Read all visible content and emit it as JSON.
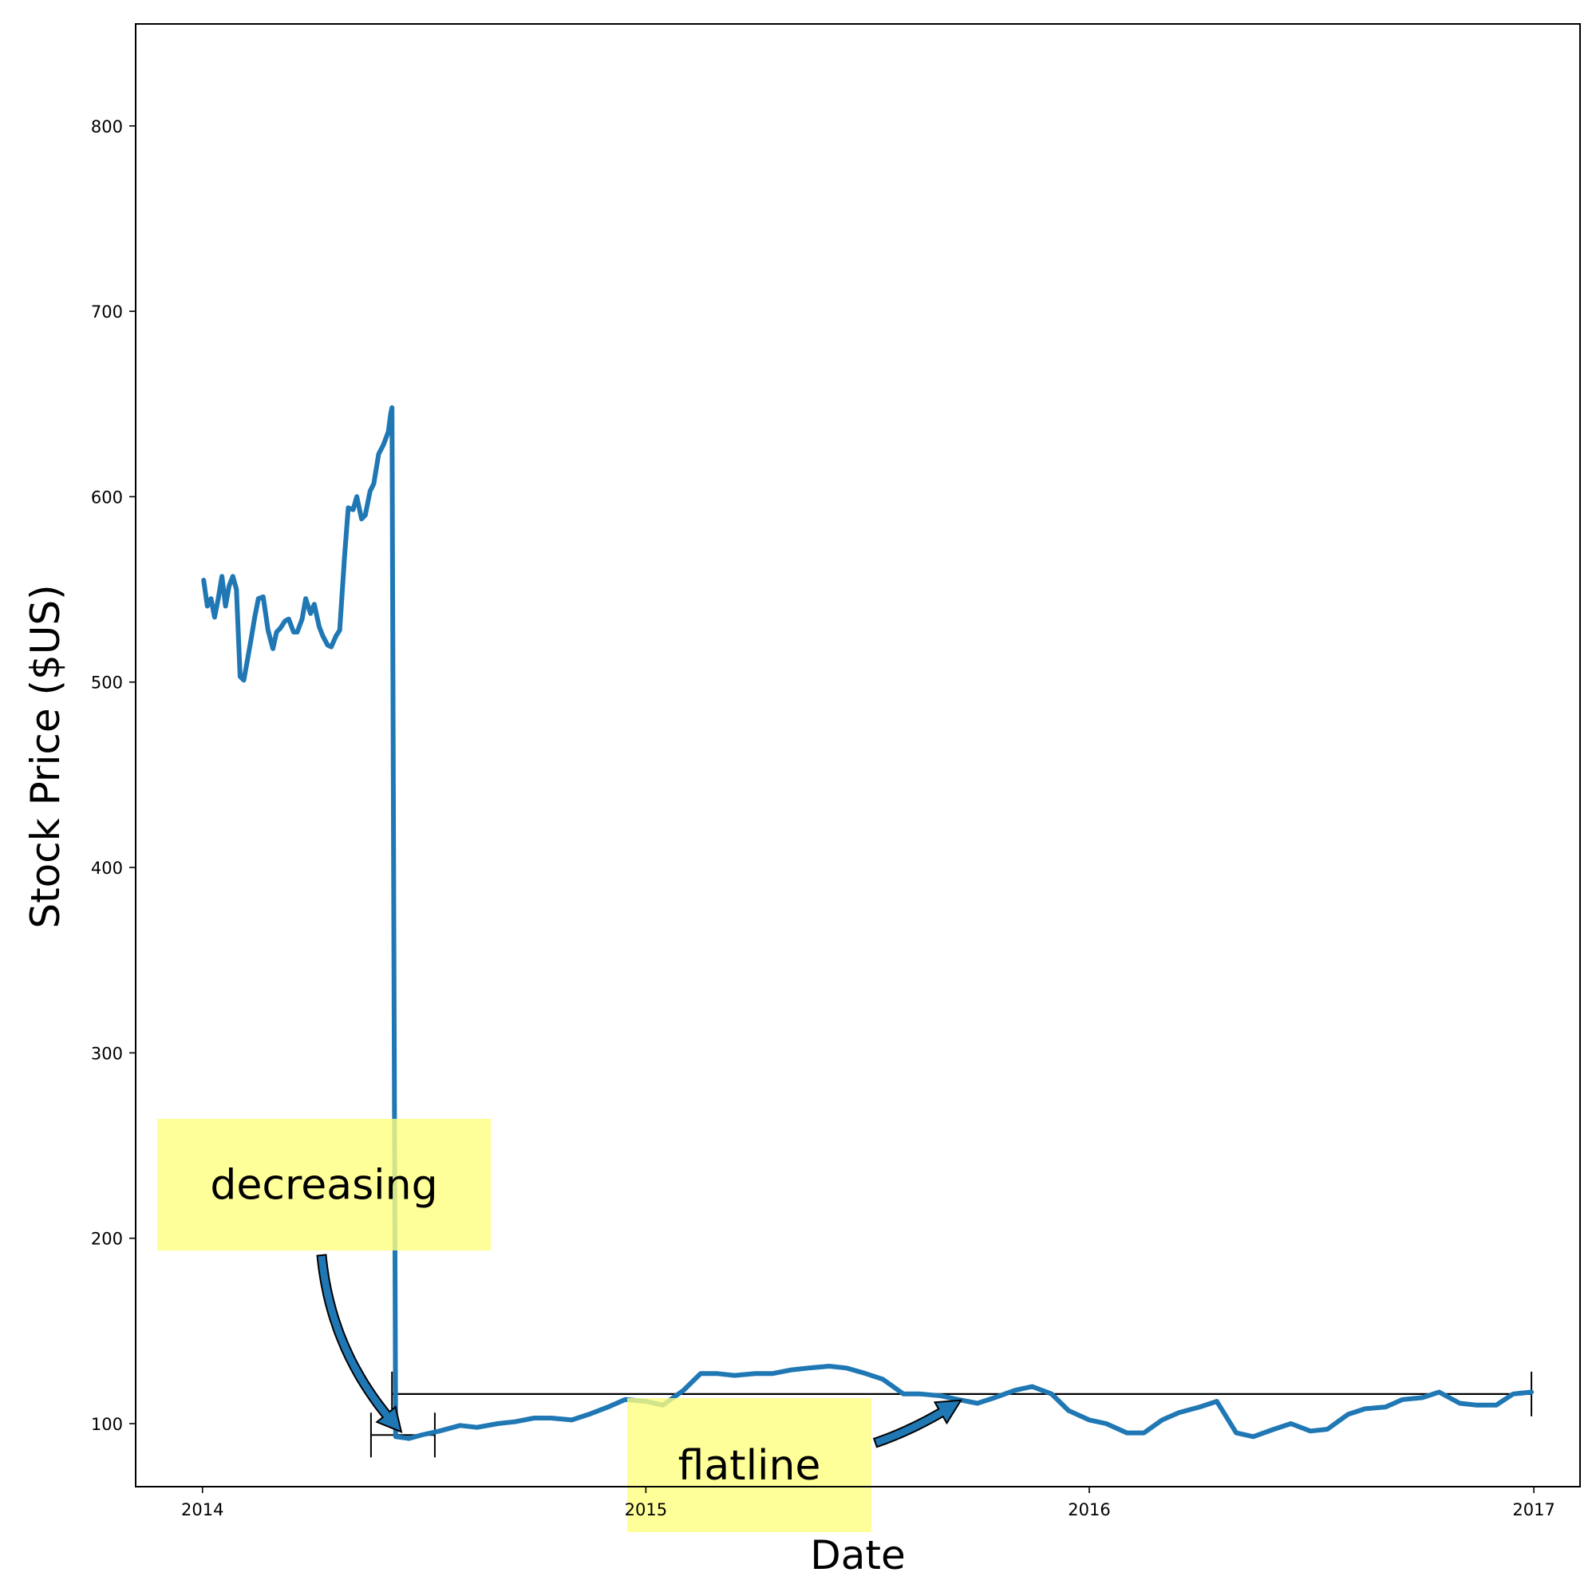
{
  "chart_data": {
    "type": "line",
    "xlabel": "Date",
    "ylabel": "Stock Price ($US)",
    "x_ticks": [
      "2014",
      "2015",
      "2016",
      "2017"
    ],
    "y_ticks": [
      100,
      200,
      300,
      400,
      500,
      600,
      700,
      800
    ],
    "xlim": [
      "2013-11-07",
      "2017-02-08"
    ],
    "ylim": [
      66,
      855
    ],
    "grid": false,
    "line_color": "#1f77b4",
    "annotation_box_color": "#ffff80",
    "series": [
      {
        "x": [
          "2014-01-02",
          "2014-01-05",
          "2014-01-08",
          "2014-01-11",
          "2014-01-14",
          "2014-01-17",
          "2014-01-20",
          "2014-01-23",
          "2014-01-26",
          "2014-01-29",
          "2014-02-01",
          "2014-02-04",
          "2014-02-07",
          "2014-02-10",
          "2014-02-13",
          "2014-02-16",
          "2014-02-20",
          "2014-02-24",
          "2014-02-28",
          "2014-03-03",
          "2014-03-06",
          "2014-03-10",
          "2014-03-13",
          "2014-03-17",
          "2014-03-20",
          "2014-03-24",
          "2014-03-27",
          "2014-03-31",
          "2014-04-03",
          "2014-04-07",
          "2014-04-10",
          "2014-04-14",
          "2014-04-17",
          "2014-04-21",
          "2014-04-24",
          "2014-04-28",
          "2014-05-01",
          "2014-05-05",
          "2014-05-08",
          "2014-05-12",
          "2014-05-15",
          "2014-05-19",
          "2014-05-22",
          "2014-05-26",
          "2014-05-30",
          "2014-06-03",
          "2014-06-05",
          "2014-06-06",
          "2014-06-09",
          "2014-06-20",
          "2014-07-01",
          "2014-07-15",
          "2014-08-01",
          "2014-08-15",
          "2014-09-01",
          "2014-09-15",
          "2014-10-01",
          "2014-10-15",
          "2014-11-01",
          "2014-11-15",
          "2014-12-01",
          "2014-12-15",
          "2015-01-01",
          "2015-01-15",
          "2015-02-01",
          "2015-02-15",
          "2015-03-01",
          "2015-03-15",
          "2015-04-01",
          "2015-04-15",
          "2015-05-01",
          "2015-05-15",
          "2015-06-01",
          "2015-06-15",
          "2015-07-01",
          "2015-07-15",
          "2015-08-01",
          "2015-08-15",
          "2015-09-01",
          "2015-09-15",
          "2015-10-01",
          "2015-10-15",
          "2015-11-01",
          "2015-11-15",
          "2015-12-01",
          "2015-12-15",
          "2016-01-01",
          "2016-01-15",
          "2016-02-01",
          "2016-02-15",
          "2016-03-01",
          "2016-03-15",
          "2016-04-01",
          "2016-04-15",
          "2016-05-01",
          "2016-05-15",
          "2016-06-01",
          "2016-06-15",
          "2016-07-01",
          "2016-07-15",
          "2016-08-01",
          "2016-08-15",
          "2016-09-01",
          "2016-09-15",
          "2016-10-01",
          "2016-10-15",
          "2016-11-01",
          "2016-11-15",
          "2016-12-01",
          "2016-12-15",
          "2016-12-30"
        ],
        "values": [
          555,
          541,
          545,
          535,
          545,
          557,
          541,
          552,
          557,
          550,
          503,
          501,
          512,
          523,
          535,
          545,
          546,
          528,
          518,
          527,
          529,
          533,
          534,
          527,
          527,
          534,
          545,
          537,
          542,
          530,
          525,
          520,
          519,
          525,
          528,
          568,
          594,
          593,
          600,
          588,
          590,
          603,
          607,
          623,
          628,
          635,
          645,
          648,
          93,
          92,
          94,
          96,
          99,
          98,
          100,
          101,
          103,
          103,
          102,
          105,
          109,
          113,
          112,
          110,
          118,
          127,
          127,
          126,
          127,
          127,
          129,
          130,
          131,
          130,
          127,
          124,
          116,
          116,
          115,
          113,
          111,
          114,
          118,
          120,
          116,
          107,
          102,
          100,
          95,
          95,
          102,
          106,
          109,
          112,
          95,
          93,
          97,
          100,
          96,
          97,
          105,
          108,
          109,
          113,
          114,
          117,
          111,
          110,
          110,
          116,
          117
        ]
      }
    ],
    "annotations": [
      {
        "text": "decreasing",
        "target": [
          "2014-06-15",
          93
        ]
      },
      {
        "text": "flatline",
        "target": [
          "2015-09-20",
          116
        ]
      }
    ]
  }
}
